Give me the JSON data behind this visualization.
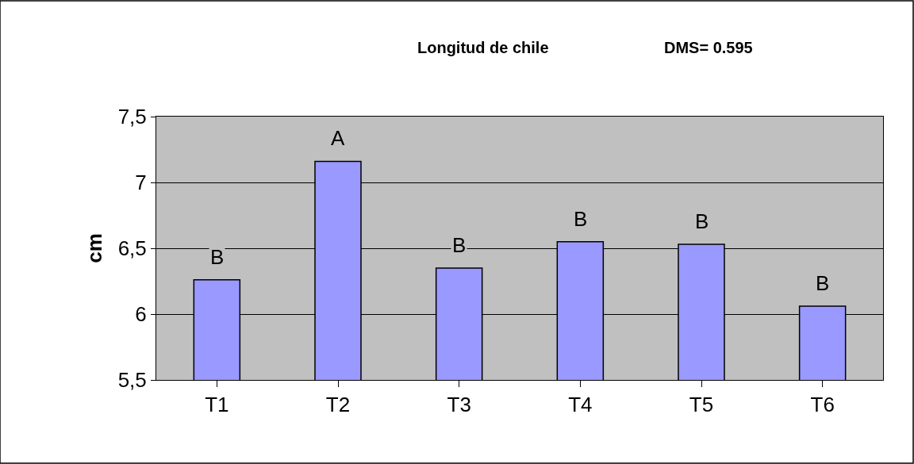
{
  "chart_data": {
    "type": "bar",
    "title": "Longitud de chile",
    "subtitle": "DMS= 0.595",
    "ylabel": "cm",
    "categories": [
      "T1",
      "T2",
      "T3",
      "T4",
      "T5",
      "T6"
    ],
    "values": [
      6.26,
      7.16,
      6.35,
      6.55,
      6.53,
      6.06
    ],
    "color": "#9999ff",
    "ylim": [
      5.5,
      7.5
    ],
    "yticks": [
      {
        "value": 5.5,
        "label": "5,5"
      },
      6,
      {
        "value": 6.5,
        "label": "6,5"
      },
      7,
      {
        "value": 7.5,
        "label": "7,5"
      }
    ],
    "grid": "y",
    "annotations": [
      {
        "text": "B",
        "x": "T1",
        "y": 6.26
      },
      {
        "text": "A",
        "x": "T2",
        "y": 7.16
      },
      {
        "text": "B",
        "x": "T3",
        "y": 6.35
      },
      {
        "text": "B",
        "x": "T4",
        "y": 6.55
      },
      {
        "text": "B",
        "x": "T5",
        "y": 6.53
      },
      {
        "text": "B",
        "x": "T6",
        "y": 6.06
      }
    ]
  }
}
